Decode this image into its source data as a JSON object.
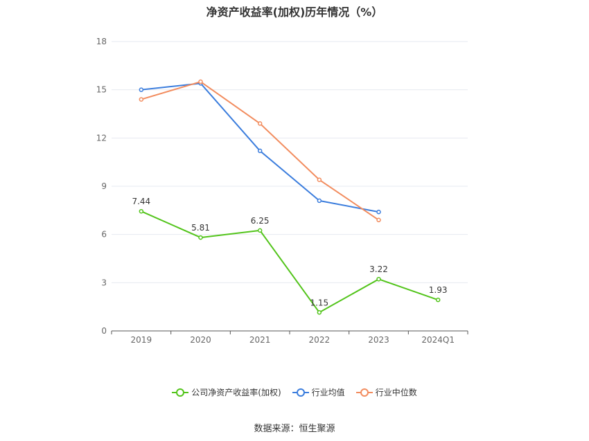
{
  "chart_data": {
    "type": "line",
    "title": "净资产收益率(加权)历年情况（%）",
    "categories": [
      "2019",
      "2020",
      "2021",
      "2022",
      "2023",
      "2024Q1"
    ],
    "ylim": [
      0,
      18
    ],
    "yticks": [
      0,
      3,
      6,
      9,
      12,
      15,
      18
    ],
    "grid": true,
    "legend_position": "bottom",
    "series": [
      {
        "name": "公司净资产收益率(加权)",
        "color": "#52c41a",
        "values": [
          7.44,
          5.81,
          6.25,
          1.15,
          3.22,
          1.93
        ],
        "labels": [
          "7.44",
          "5.81",
          "6.25",
          "1.15",
          "3.22",
          "1.93"
        ]
      },
      {
        "name": "行业均值",
        "color": "#3b7ddd",
        "values": [
          15.0,
          15.4,
          11.2,
          8.1,
          7.4,
          null
        ]
      },
      {
        "name": "行业中位数",
        "color": "#f28c5e",
        "values": [
          14.4,
          15.5,
          12.9,
          9.4,
          6.9,
          null
        ]
      }
    ]
  },
  "source": "数据来源：恒生聚源"
}
